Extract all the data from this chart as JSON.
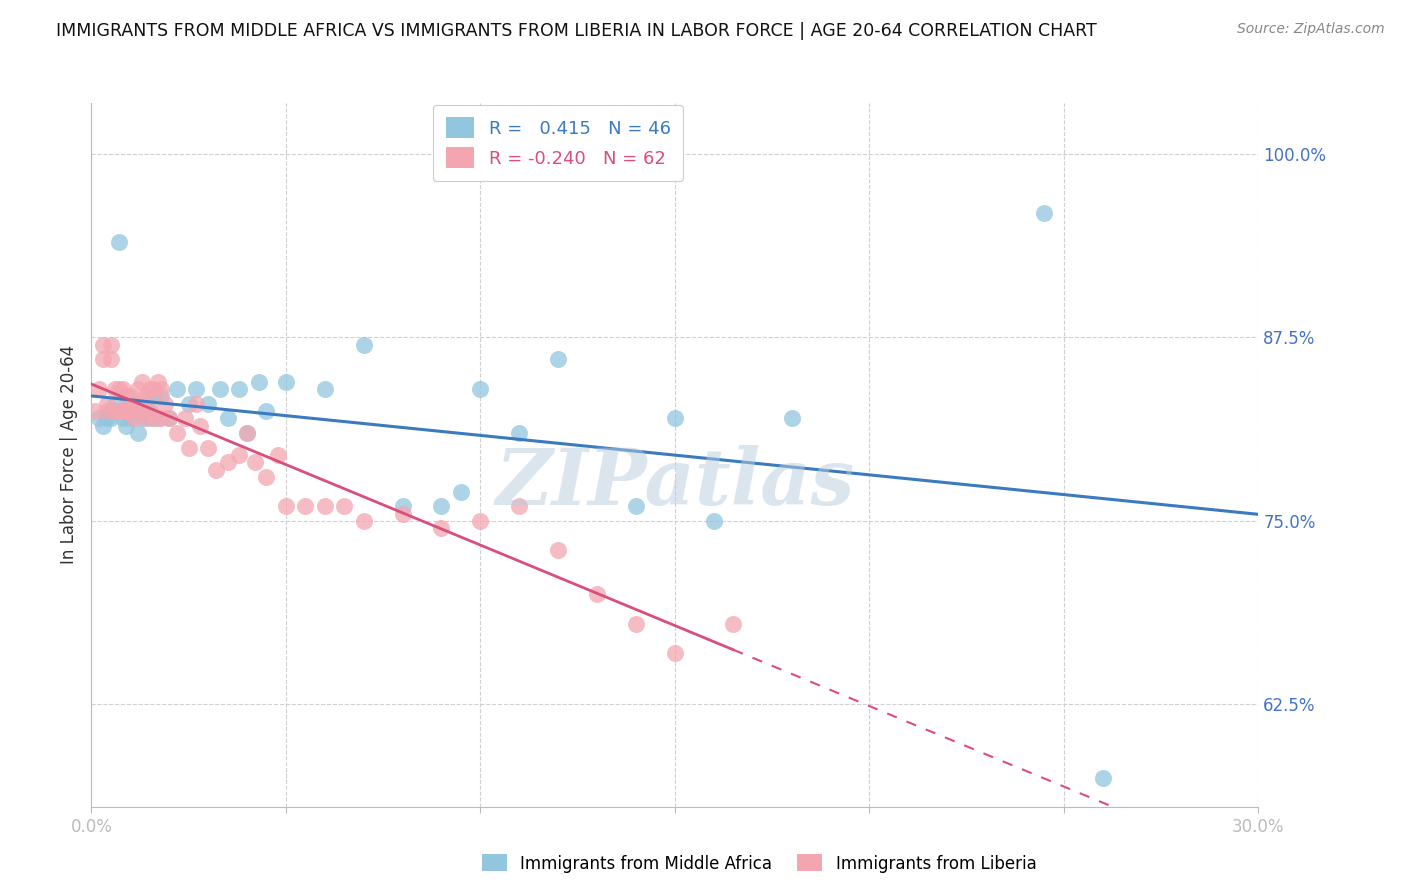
{
  "title": "IMMIGRANTS FROM MIDDLE AFRICA VS IMMIGRANTS FROM LIBERIA IN LABOR FORCE | AGE 20-64 CORRELATION CHART",
  "source": "Source: ZipAtlas.com",
  "ylabel": "In Labor Force | Age 20-64",
  "xlim": [
    0.0,
    0.3
  ],
  "ylim": [
    0.555,
    1.035
  ],
  "xticks": [
    0.0,
    0.05,
    0.1,
    0.15,
    0.2,
    0.25,
    0.3
  ],
  "xticklabels": [
    "0.0%",
    "",
    "",
    "",
    "",
    "",
    "30.0%"
  ],
  "yticks": [
    0.625,
    0.75,
    0.875,
    1.0
  ],
  "yticklabels": [
    "62.5%",
    "75.0%",
    "87.5%",
    "100.0%"
  ],
  "blue_color": "#92c5de",
  "pink_color": "#f4a6b0",
  "blue_line_color": "#3a7abf",
  "pink_line_color": "#d94f7a",
  "R_blue": 0.415,
  "N_blue": 46,
  "R_pink": -0.24,
  "N_pink": 62,
  "legend_label_blue": "Immigrants from Middle Africa",
  "legend_label_pink": "Immigrants from Liberia",
  "watermark": "ZIPatlas",
  "blue_scatter_x": [
    0.002,
    0.003,
    0.004,
    0.005,
    0.005,
    0.006,
    0.007,
    0.008,
    0.009,
    0.01,
    0.01,
    0.011,
    0.012,
    0.013,
    0.014,
    0.015,
    0.015,
    0.016,
    0.017,
    0.018,
    0.02,
    0.022,
    0.025,
    0.027,
    0.03,
    0.033,
    0.035,
    0.038,
    0.04,
    0.043,
    0.045,
    0.05,
    0.06,
    0.07,
    0.08,
    0.09,
    0.095,
    0.1,
    0.11,
    0.12,
    0.14,
    0.15,
    0.16,
    0.18,
    0.245,
    0.26
  ],
  "blue_scatter_y": [
    0.82,
    0.815,
    0.82,
    0.825,
    0.82,
    0.83,
    0.94,
    0.82,
    0.815,
    0.83,
    0.82,
    0.825,
    0.81,
    0.82,
    0.83,
    0.825,
    0.82,
    0.835,
    0.82,
    0.835,
    0.82,
    0.84,
    0.83,
    0.84,
    0.83,
    0.84,
    0.82,
    0.84,
    0.81,
    0.845,
    0.825,
    0.845,
    0.84,
    0.87,
    0.76,
    0.76,
    0.77,
    0.84,
    0.81,
    0.86,
    0.76,
    0.82,
    0.75,
    0.82,
    0.96,
    0.575
  ],
  "pink_scatter_x": [
    0.001,
    0.002,
    0.003,
    0.003,
    0.004,
    0.004,
    0.005,
    0.005,
    0.006,
    0.006,
    0.007,
    0.007,
    0.008,
    0.008,
    0.009,
    0.009,
    0.01,
    0.01,
    0.011,
    0.011,
    0.012,
    0.012,
    0.013,
    0.013,
    0.014,
    0.014,
    0.015,
    0.015,
    0.016,
    0.016,
    0.017,
    0.018,
    0.018,
    0.019,
    0.02,
    0.022,
    0.024,
    0.025,
    0.027,
    0.028,
    0.03,
    0.032,
    0.035,
    0.038,
    0.04,
    0.042,
    0.045,
    0.048,
    0.05,
    0.055,
    0.06,
    0.065,
    0.07,
    0.08,
    0.09,
    0.1,
    0.11,
    0.12,
    0.13,
    0.14,
    0.15,
    0.165
  ],
  "pink_scatter_y": [
    0.825,
    0.84,
    0.87,
    0.86,
    0.83,
    0.825,
    0.87,
    0.86,
    0.84,
    0.825,
    0.84,
    0.825,
    0.84,
    0.825,
    0.835,
    0.825,
    0.835,
    0.825,
    0.83,
    0.82,
    0.84,
    0.825,
    0.845,
    0.83,
    0.835,
    0.82,
    0.84,
    0.825,
    0.84,
    0.82,
    0.845,
    0.84,
    0.82,
    0.83,
    0.82,
    0.81,
    0.82,
    0.8,
    0.83,
    0.815,
    0.8,
    0.785,
    0.79,
    0.795,
    0.81,
    0.79,
    0.78,
    0.795,
    0.76,
    0.76,
    0.76,
    0.76,
    0.75,
    0.755,
    0.745,
    0.75,
    0.76,
    0.73,
    0.7,
    0.68,
    0.66,
    0.68
  ],
  "background_color": "#ffffff",
  "grid_color": "#d0d0d0",
  "title_fontsize": 12.5,
  "tick_color": "#4472c4",
  "ylabel_color": "#333333"
}
